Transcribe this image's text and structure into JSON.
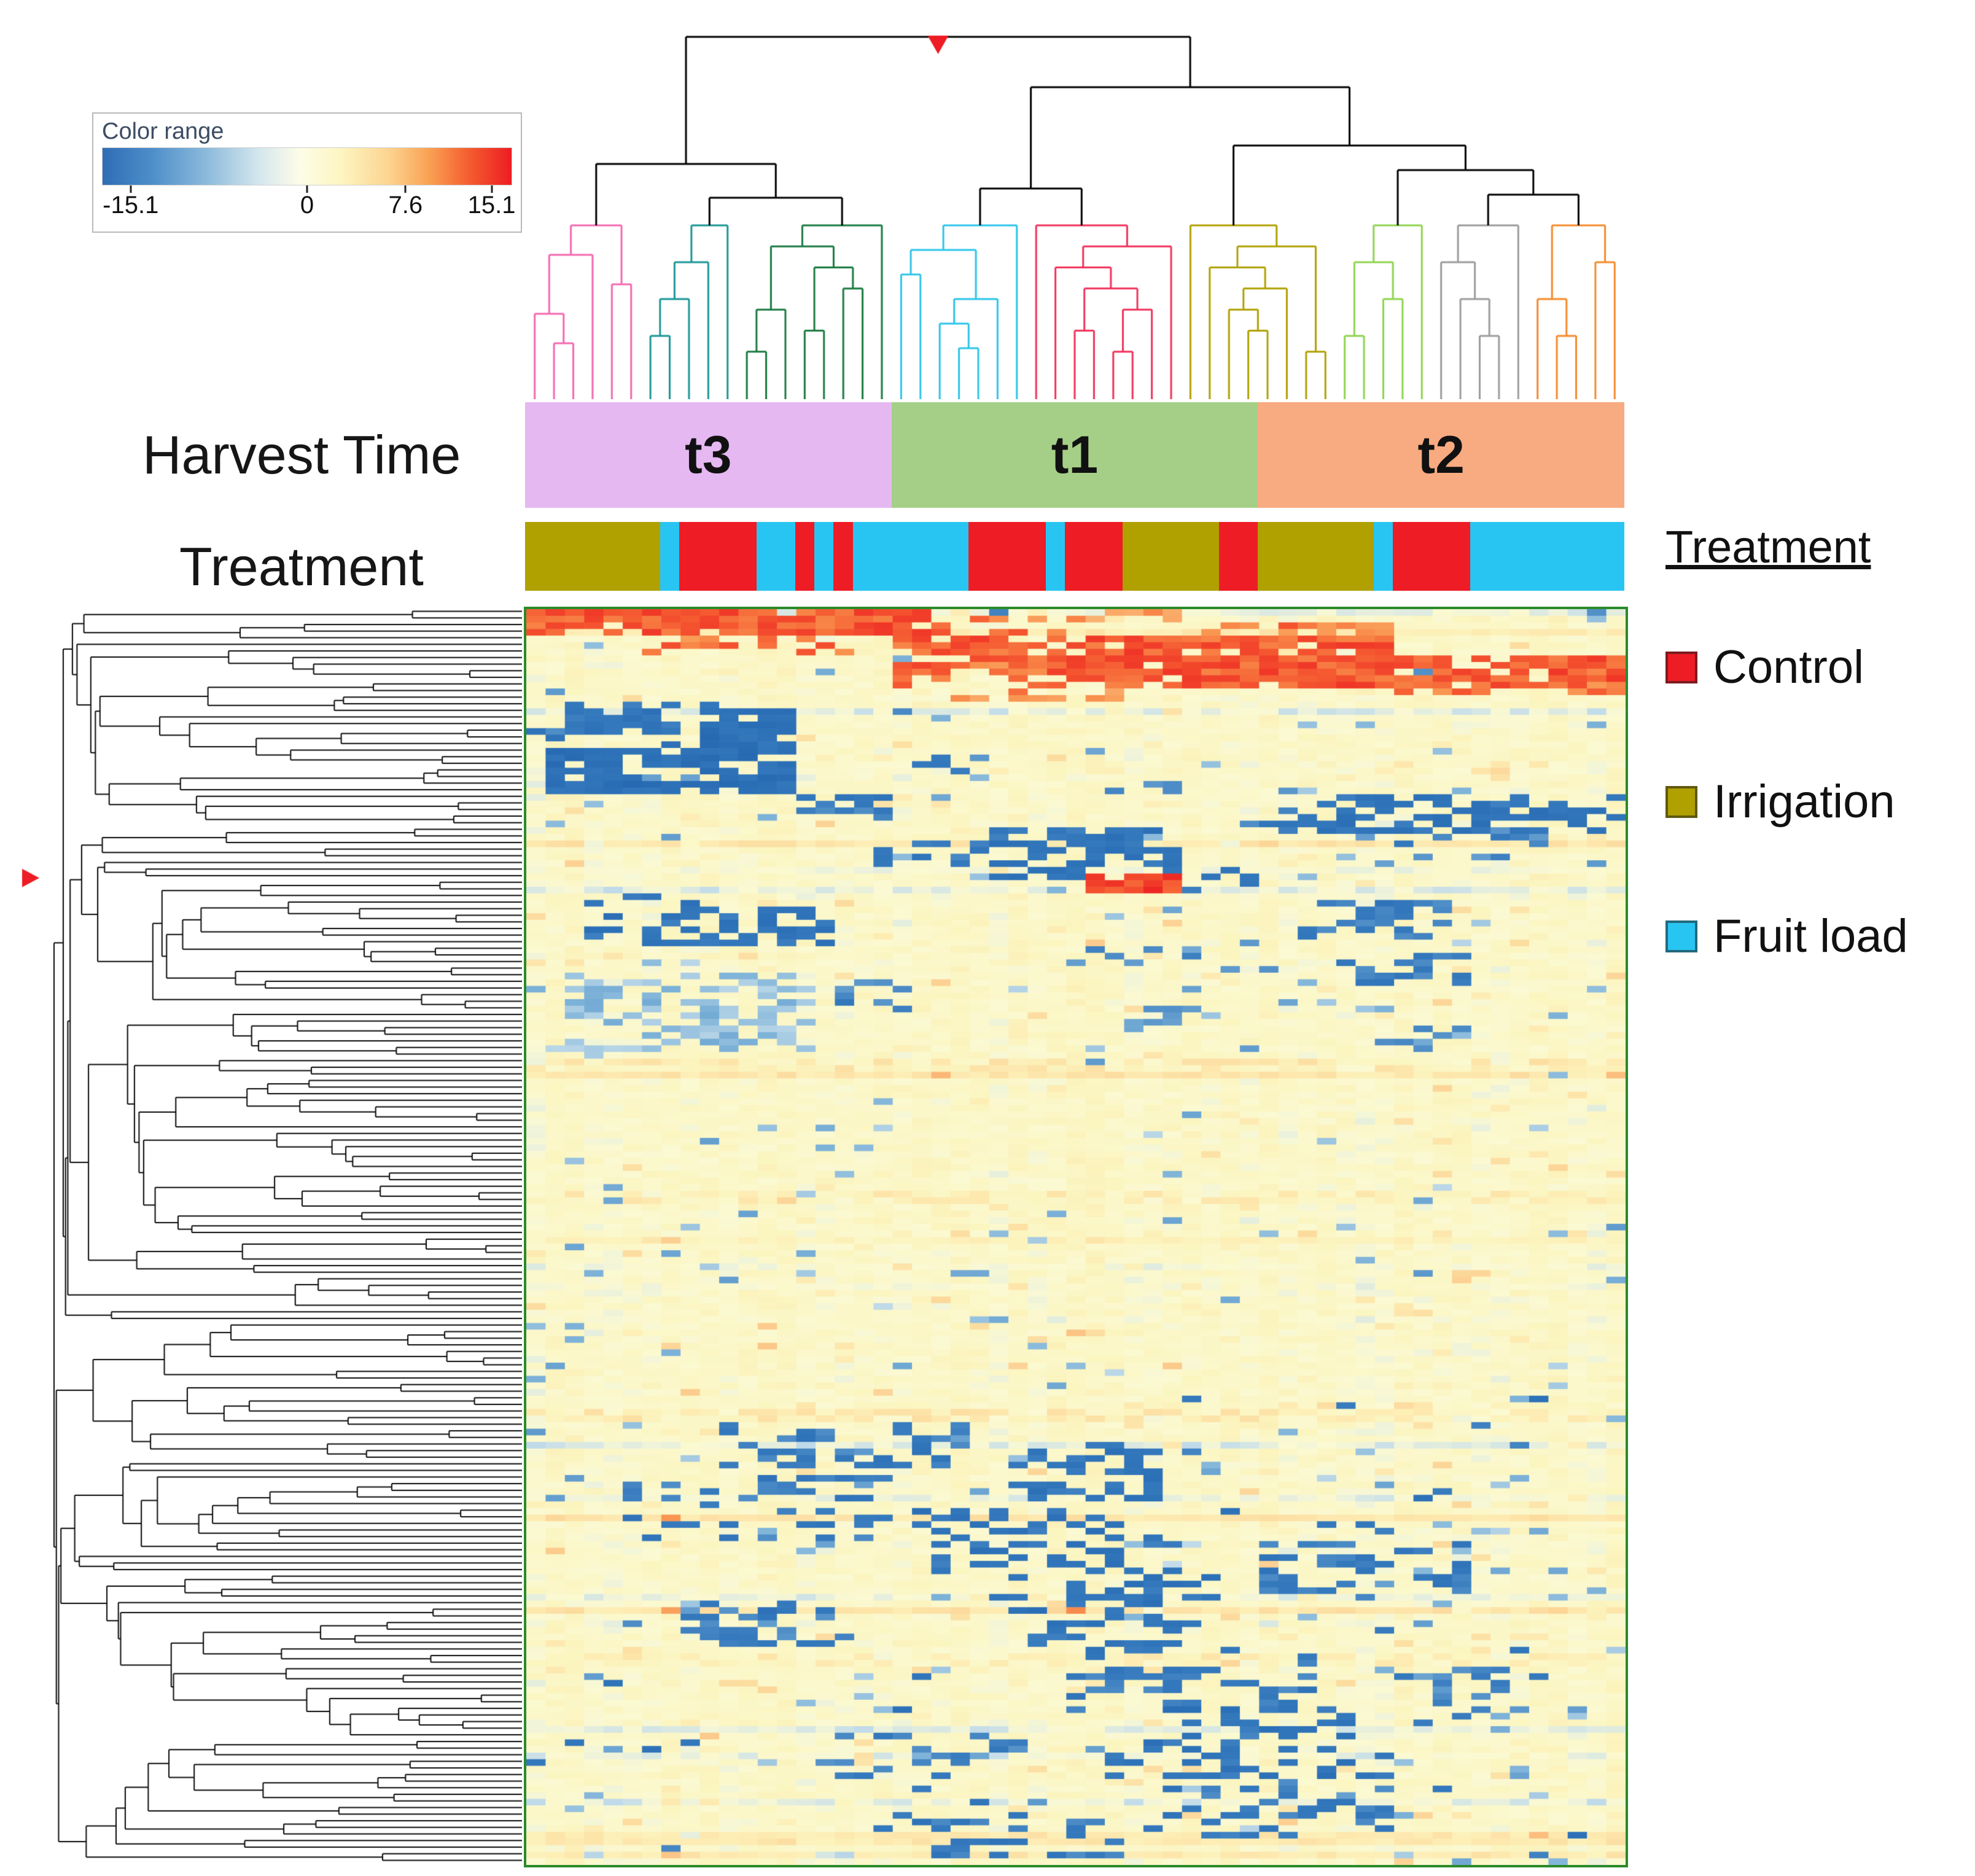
{
  "color_range_legend": {
    "label": "Color range",
    "ticks": [
      {
        "label": "-15.1",
        "pct": 7
      },
      {
        "label": "0",
        "pct": 50
      },
      {
        "label": "7.6",
        "pct": 74
      },
      {
        "label": "15.1",
        "pct": 95
      }
    ]
  },
  "harvest_time": {
    "label": "Harvest Time",
    "groups": [
      {
        "label": "t3",
        "color": "#e5b8f2",
        "cols": 19
      },
      {
        "label": "t1",
        "color": "#a5cf87",
        "cols": 19
      },
      {
        "label": "t2",
        "color": "#f8ab80",
        "cols": 19
      }
    ]
  },
  "treatment": {
    "label": "Treatment",
    "colors": {
      "control": "#ee1c25",
      "irrigation": "#b0a000",
      "fruitload": "#29c5f2"
    },
    "segments": [
      [
        "irrigation",
        7
      ],
      [
        "fruitload",
        1
      ],
      [
        "control",
        4
      ],
      [
        "fruitload",
        2
      ],
      [
        "control",
        1
      ],
      [
        "fruitload",
        1
      ],
      [
        "control",
        1
      ],
      [
        "fruitload",
        6
      ],
      [
        "control",
        4
      ],
      [
        "fruitload",
        1
      ],
      [
        "control",
        3
      ],
      [
        "irrigation",
        5
      ],
      [
        "control",
        2
      ],
      [
        "irrigation",
        6
      ],
      [
        "fruitload",
        1
      ],
      [
        "control",
        4
      ],
      [
        "fruitload",
        8
      ]
    ]
  },
  "legend": {
    "title": "Treatment",
    "items": [
      {
        "label": "Control",
        "key": "control"
      },
      {
        "label": "Irrigation",
        "key": "irrigation"
      },
      {
        "label": "Fruit load",
        "key": "fruitload"
      }
    ]
  },
  "chart_data": {
    "type": "heatmap",
    "rows": 190,
    "cols": 57,
    "seed": 1234,
    "color_scale": {
      "min": -15.1,
      "mid": 0,
      "max": 15.1,
      "tick_values": [
        -15.1,
        0,
        7.6,
        15.1
      ],
      "stops": [
        [
          -15.1,
          "#1c5fab"
        ],
        [
          -9,
          "#3579bd"
        ],
        [
          -5,
          "#7db2d8"
        ],
        [
          -2,
          "#c3dcea"
        ],
        [
          -0.7,
          "#eef3da"
        ],
        [
          0,
          "#fbf9d2"
        ],
        [
          1.5,
          "#fbf5c0"
        ],
        [
          3,
          "#fdedb4"
        ],
        [
          5,
          "#fcd99c"
        ],
        [
          7,
          "#fbbc7d"
        ],
        [
          9,
          "#f9944f"
        ],
        [
          11,
          "#f55a31"
        ],
        [
          13,
          "#ee2a24"
        ],
        [
          15.1,
          "#e81c24"
        ]
      ]
    },
    "column_groups": [
      {
        "label": "t3",
        "cols": [
          0,
          18
        ]
      },
      {
        "label": "t1",
        "cols": [
          19,
          37
        ]
      },
      {
        "label": "t2",
        "cols": [
          38,
          56
        ]
      }
    ],
    "patches": [
      [
        0,
        3,
        0,
        20,
        11,
        0.85
      ],
      [
        0,
        1,
        21,
        33,
        9,
        0.2
      ],
      [
        1,
        3,
        21,
        27,
        10,
        0.35
      ],
      [
        2,
        4,
        33,
        44,
        10,
        0.5
      ],
      [
        4,
        8,
        19,
        44,
        11,
        0.8
      ],
      [
        4,
        6,
        6,
        16,
        10,
        0.55
      ],
      [
        7,
        11,
        27,
        56,
        11,
        0.85
      ],
      [
        8,
        11,
        19,
        26,
        10,
        0.45
      ],
      [
        11,
        12,
        45,
        56,
        10,
        0.6
      ],
      [
        12,
        13,
        21,
        30,
        9,
        0.3
      ],
      [
        14,
        21,
        2,
        12,
        -10,
        0.5
      ],
      [
        15,
        20,
        9,
        13,
        -11,
        0.85
      ],
      [
        17,
        19,
        0,
        4,
        -9,
        0.5
      ],
      [
        21,
        27,
        1,
        13,
        -11,
        0.8
      ],
      [
        22,
        24,
        19,
        23,
        -8,
        0.3
      ],
      [
        26,
        28,
        30,
        34,
        -8,
        0.35
      ],
      [
        28,
        31,
        14,
        18,
        -9,
        0.4
      ],
      [
        28,
        33,
        41,
        56,
        -10,
        0.6
      ],
      [
        30,
        33,
        36,
        40,
        -9,
        0.4
      ],
      [
        33,
        40,
        24,
        33,
        -10,
        0.55
      ],
      [
        35,
        38,
        18,
        23,
        -9,
        0.35
      ],
      [
        34,
        37,
        45,
        52,
        -8,
        0.3
      ],
      [
        39,
        42,
        34,
        37,
        -9,
        0.4
      ],
      [
        40,
        42,
        29,
        33,
        12,
        0.9
      ],
      [
        43,
        50,
        3,
        9,
        -10,
        0.4
      ],
      [
        45,
        50,
        10,
        15,
        -10,
        0.5
      ],
      [
        44,
        49,
        40,
        47,
        -9,
        0.45
      ],
      [
        50,
        54,
        28,
        38,
        -7,
        0.3
      ],
      [
        52,
        56,
        42,
        48,
        -9,
        0.4
      ],
      [
        55,
        66,
        2,
        14,
        -4,
        0.5
      ],
      [
        56,
        60,
        16,
        19,
        -8,
        0.3
      ],
      [
        60,
        63,
        30,
        34,
        -6,
        0.3
      ],
      [
        63,
        66,
        44,
        48,
        -7,
        0.25
      ],
      [
        68,
        69,
        0,
        56,
        3,
        0.6
      ],
      [
        88,
        89,
        0,
        56,
        2.5,
        0.5
      ],
      [
        121,
        122,
        0,
        56,
        3,
        0.6
      ],
      [
        123,
        131,
        10,
        22,
        -9,
        0.3
      ],
      [
        126,
        134,
        25,
        32,
        -10,
        0.35
      ],
      [
        131,
        140,
        5,
        18,
        -9,
        0.3
      ],
      [
        136,
        145,
        20,
        33,
        -10,
        0.35
      ],
      [
        141,
        148,
        38,
        48,
        -9,
        0.3
      ],
      [
        146,
        156,
        25,
        35,
        -10,
        0.35
      ],
      [
        150,
        156,
        8,
        15,
        -8,
        0.25
      ],
      [
        156,
        166,
        28,
        40,
        -9,
        0.3
      ],
      [
        158,
        159,
        0,
        56,
        2.5,
        0.5
      ],
      [
        160,
        168,
        45,
        52,
        -8,
        0.25
      ],
      [
        166,
        176,
        30,
        42,
        -10,
        0.35
      ],
      [
        170,
        178,
        15,
        25,
        -8,
        0.25
      ],
      [
        176,
        185,
        33,
        44,
        -9,
        0.3
      ],
      [
        183,
        188,
        20,
        30,
        -9,
        0.3
      ]
    ],
    "top_dendrogram_groups": [
      {
        "color": "#f468b0",
        "leaves": 6
      },
      {
        "color": "#1a9696",
        "leaves": 5
      },
      {
        "color": "#1a7a40",
        "leaves": 8
      },
      {
        "color": "#2cc4e8",
        "leaves": 7
      },
      {
        "color": "#f0325a",
        "leaves": 8
      },
      {
        "color": "#b0a000",
        "leaves": 8
      },
      {
        "color": "#8ed44e",
        "leaves": 5
      },
      {
        "color": "#9c9c9c",
        "leaves": 5
      },
      {
        "color": "#f58a2a",
        "leaves": 5
      }
    ],
    "row_dendrogram_leaves": 190,
    "markers": {
      "top_dendrogram": "red down-triangle at root",
      "row_dendrogram": "red right-triangle at ~22% height"
    }
  }
}
